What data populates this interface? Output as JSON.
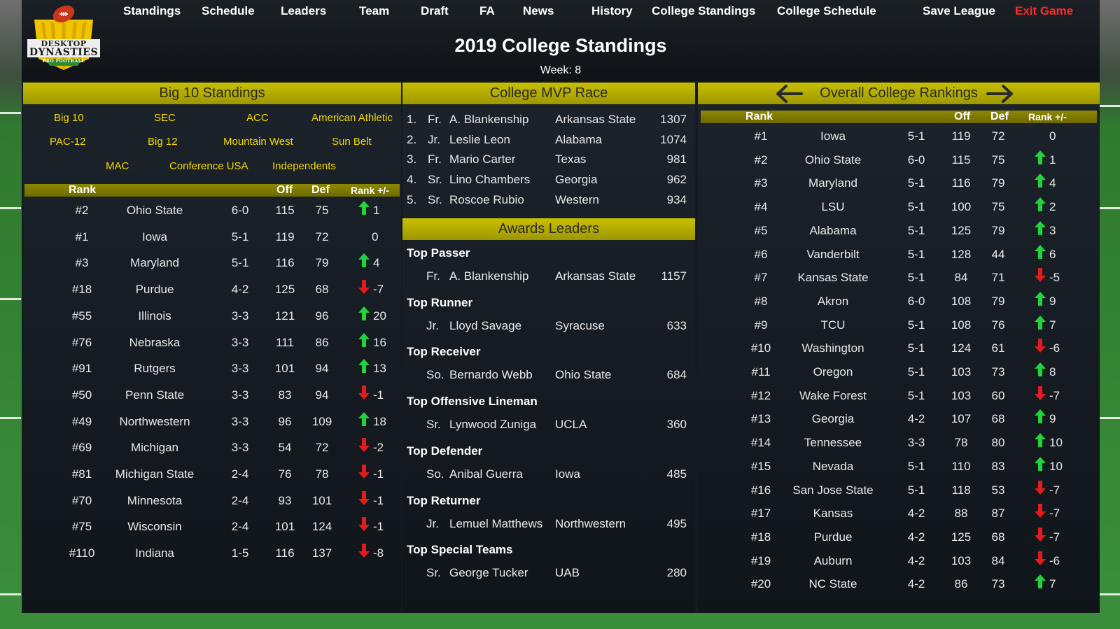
{
  "nav": {
    "items": [
      "Standings",
      "Schedule",
      "Leaders",
      "Team",
      "Draft",
      "FA",
      "News",
      "History",
      "College Standings",
      "College Schedule",
      "Save League"
    ],
    "exit_label": "Exit Game"
  },
  "logo": {
    "line1": "DESKTOP",
    "line2": "DYNASTIES",
    "line3": "PRO FOOTBALL"
  },
  "header": {
    "title": "2019 College Standings",
    "week": "Week: 8"
  },
  "conference_panel": {
    "title": "Big 10 Standings",
    "conferences": [
      "Big 10",
      "SEC",
      "ACC",
      "American Athletic",
      "PAC-12",
      "Big 12",
      "Mountain West",
      "Sun Belt",
      "MAC",
      "Conference USA",
      "Independents"
    ],
    "columns": {
      "rank": "Rank",
      "off": "Off",
      "def": "Def",
      "change": "Rank +/-"
    },
    "rows": [
      {
        "rank": "#2",
        "team": "Ohio State",
        "record": "6-0",
        "off": "115",
        "def": "75",
        "dir": "up",
        "change": "1"
      },
      {
        "rank": "#1",
        "team": "Iowa",
        "record": "5-1",
        "off": "119",
        "def": "72",
        "dir": "none",
        "change": "0"
      },
      {
        "rank": "#3",
        "team": "Maryland",
        "record": "5-1",
        "off": "116",
        "def": "79",
        "dir": "up",
        "change": "4"
      },
      {
        "rank": "#18",
        "team": "Purdue",
        "record": "4-2",
        "off": "125",
        "def": "68",
        "dir": "down",
        "change": "-7"
      },
      {
        "rank": "#55",
        "team": "Illinois",
        "record": "3-3",
        "off": "121",
        "def": "96",
        "dir": "up",
        "change": "20"
      },
      {
        "rank": "#76",
        "team": "Nebraska",
        "record": "3-3",
        "off": "111",
        "def": "86",
        "dir": "up",
        "change": "16"
      },
      {
        "rank": "#91",
        "team": "Rutgers",
        "record": "3-3",
        "off": "101",
        "def": "94",
        "dir": "up",
        "change": "13"
      },
      {
        "rank": "#50",
        "team": "Penn State",
        "record": "3-3",
        "off": "83",
        "def": "94",
        "dir": "down",
        "change": "-1"
      },
      {
        "rank": "#49",
        "team": "Northwestern",
        "record": "3-3",
        "off": "96",
        "def": "109",
        "dir": "up",
        "change": "18"
      },
      {
        "rank": "#69",
        "team": "Michigan",
        "record": "3-3",
        "off": "54",
        "def": "72",
        "dir": "down",
        "change": "-2"
      },
      {
        "rank": "#81",
        "team": "Michigan State",
        "record": "2-4",
        "off": "76",
        "def": "78",
        "dir": "down",
        "change": "-1"
      },
      {
        "rank": "#70",
        "team": "Minnesota",
        "record": "2-4",
        "off": "93",
        "def": "101",
        "dir": "down",
        "change": "-1"
      },
      {
        "rank": "#75",
        "team": "Wisconsin",
        "record": "2-4",
        "off": "101",
        "def": "124",
        "dir": "down",
        "change": "-1"
      },
      {
        "rank": "#110",
        "team": "Indiana",
        "record": "1-5",
        "off": "116",
        "def": "137",
        "dir": "down",
        "change": "-8"
      }
    ]
  },
  "mvp_panel": {
    "title": "College MVP Race",
    "rows": [
      {
        "pos": "1.",
        "class": "Fr.",
        "name": "A. Blankenship",
        "school": "Arkansas State",
        "points": "1307"
      },
      {
        "pos": "2.",
        "class": "Jr.",
        "name": "Leslie Leon",
        "school": "Alabama",
        "points": "1074"
      },
      {
        "pos": "3.",
        "class": "Fr.",
        "name": "Mario Carter",
        "school": "Texas",
        "points": "981"
      },
      {
        "pos": "4.",
        "class": "Sr.",
        "name": "Lino Chambers",
        "school": "Georgia",
        "points": "962"
      },
      {
        "pos": "5.",
        "class": "Sr.",
        "name": "Roscoe Rubio",
        "school": "Western",
        "points": "934"
      }
    ]
  },
  "awards_panel": {
    "title": "Awards Leaders",
    "awards": [
      {
        "category": "Top Passer",
        "class": "Fr.",
        "name": "A. Blankenship",
        "school": "Arkansas State",
        "value": "1157"
      },
      {
        "category": "Top Runner",
        "class": "Jr.",
        "name": "Lloyd Savage",
        "school": "Syracuse",
        "value": "633"
      },
      {
        "category": "Top Receiver",
        "class": "So.",
        "name": "Bernardo Webb",
        "school": "Ohio State",
        "value": "684"
      },
      {
        "category": "Top Offensive Lineman",
        "class": "Sr.",
        "name": "Lynwood Zuniga",
        "school": "UCLA",
        "value": "360"
      },
      {
        "category": "Top Defender",
        "class": "So.",
        "name": "Anibal Guerra",
        "school": "Iowa",
        "value": "485"
      },
      {
        "category": "Top Returner",
        "class": "Jr.",
        "name": "Lemuel Matthews",
        "school": "Northwestern",
        "value": "495"
      },
      {
        "category": "Top Special Teams",
        "class": "Sr.",
        "name": "George Tucker",
        "school": "UAB",
        "value": "280"
      }
    ]
  },
  "rankings_panel": {
    "title": "Overall College Rankings",
    "columns": {
      "rank": "Rank",
      "off": "Off",
      "def": "Def",
      "change": "Rank +/-"
    },
    "rows": [
      {
        "rank": "#1",
        "team": "Iowa",
        "record": "5-1",
        "off": "119",
        "def": "72",
        "dir": "none",
        "change": "0"
      },
      {
        "rank": "#2",
        "team": "Ohio State",
        "record": "6-0",
        "off": "115",
        "def": "75",
        "dir": "up",
        "change": "1"
      },
      {
        "rank": "#3",
        "team": "Maryland",
        "record": "5-1",
        "off": "116",
        "def": "79",
        "dir": "up",
        "change": "4"
      },
      {
        "rank": "#4",
        "team": "LSU",
        "record": "5-1",
        "off": "100",
        "def": "75",
        "dir": "up",
        "change": "2"
      },
      {
        "rank": "#5",
        "team": "Alabama",
        "record": "5-1",
        "off": "125",
        "def": "79",
        "dir": "up",
        "change": "3"
      },
      {
        "rank": "#6",
        "team": "Vanderbilt",
        "record": "5-1",
        "off": "128",
        "def": "44",
        "dir": "up",
        "change": "6"
      },
      {
        "rank": "#7",
        "team": "Kansas State",
        "record": "5-1",
        "off": "84",
        "def": "71",
        "dir": "down",
        "change": "-5"
      },
      {
        "rank": "#8",
        "team": "Akron",
        "record": "6-0",
        "off": "108",
        "def": "79",
        "dir": "up",
        "change": "9"
      },
      {
        "rank": "#9",
        "team": "TCU",
        "record": "5-1",
        "off": "108",
        "def": "76",
        "dir": "up",
        "change": "7"
      },
      {
        "rank": "#10",
        "team": "Washington",
        "record": "5-1",
        "off": "124",
        "def": "61",
        "dir": "down",
        "change": "-6"
      },
      {
        "rank": "#11",
        "team": "Oregon",
        "record": "5-1",
        "off": "103",
        "def": "73",
        "dir": "up",
        "change": "8"
      },
      {
        "rank": "#12",
        "team": "Wake Forest",
        "record": "5-1",
        "off": "103",
        "def": "60",
        "dir": "down",
        "change": "-7"
      },
      {
        "rank": "#13",
        "team": "Georgia",
        "record": "4-2",
        "off": "107",
        "def": "68",
        "dir": "up",
        "change": "9"
      },
      {
        "rank": "#14",
        "team": "Tennessee",
        "record": "3-3",
        "off": "78",
        "def": "80",
        "dir": "up",
        "change": "10"
      },
      {
        "rank": "#15",
        "team": "Nevada",
        "record": "5-1",
        "off": "110",
        "def": "83",
        "dir": "up",
        "change": "10"
      },
      {
        "rank": "#16",
        "team": "San Jose State",
        "record": "5-1",
        "off": "118",
        "def": "53",
        "dir": "down",
        "change": "-7"
      },
      {
        "rank": "#17",
        "team": "Kansas",
        "record": "4-2",
        "off": "88",
        "def": "87",
        "dir": "down",
        "change": "-7"
      },
      {
        "rank": "#18",
        "team": "Purdue",
        "record": "4-2",
        "off": "125",
        "def": "68",
        "dir": "down",
        "change": "-7"
      },
      {
        "rank": "#19",
        "team": "Auburn",
        "record": "4-2",
        "off": "103",
        "def": "84",
        "dir": "down",
        "change": "-6"
      },
      {
        "rank": "#20",
        "team": "NC State",
        "record": "4-2",
        "off": "86",
        "def": "73",
        "dir": "up",
        "change": "7"
      }
    ]
  },
  "colors": {
    "accent": "#c9c000",
    "link": "#f2d900",
    "up": "#22d43a",
    "down": "#e41b1b",
    "exit": "#ff2a2a"
  },
  "icons": {
    "up": "up-arrow-icon",
    "down": "down-arrow-icon",
    "prev": "left-arrow-icon",
    "next": "right-arrow-icon"
  }
}
